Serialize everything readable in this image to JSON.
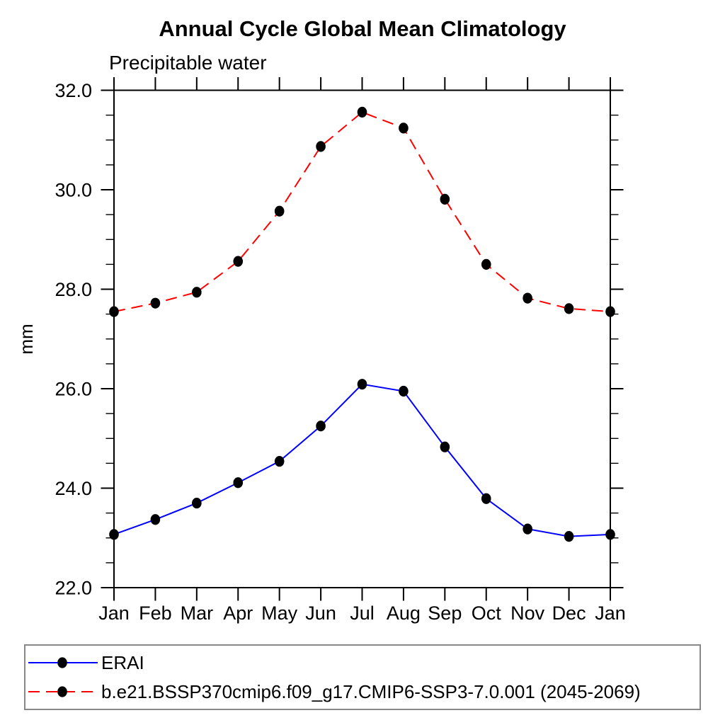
{
  "chart_data": {
    "type": "line",
    "title": "Annual Cycle Global Mean Climatology",
    "subtitle": "Precipitable water",
    "ylabel": "mm",
    "categories": [
      "Jan",
      "Feb",
      "Mar",
      "Apr",
      "May",
      "Jun",
      "Jul",
      "Aug",
      "Sep",
      "Oct",
      "Nov",
      "Dec",
      "Jan"
    ],
    "ylim": [
      22.0,
      32.0
    ],
    "ytick_interval_major": 2.0,
    "ytick_interval_minor": 0.5,
    "ytick_labels": [
      "22.0",
      "24.0",
      "26.0",
      "28.0",
      "30.0",
      "32.0"
    ],
    "grid": false,
    "frame": "box-with-outward-ticks",
    "legend_position": "bottom-left",
    "axis_color": "#000000",
    "legend_border_color": "#888888",
    "series": [
      {
        "name": "ERAI",
        "color": "#0000ff",
        "line_style": "solid",
        "marker": "filled-circle",
        "marker_color": "#000000",
        "values": [
          23.07,
          23.37,
          23.7,
          24.11,
          24.54,
          25.25,
          26.09,
          25.95,
          24.83,
          23.79,
          23.18,
          23.03,
          23.07
        ]
      },
      {
        "name": "b.e21.BSSP370cmip6.f09_g17.CMIP6-SSP3-7.0.001 (2045-2069)",
        "color": "#ff0000",
        "line_style": "dashed",
        "marker": "filled-circle",
        "marker_color": "#000000",
        "values": [
          27.55,
          27.72,
          27.94,
          28.56,
          29.57,
          30.87,
          31.56,
          31.24,
          29.81,
          28.5,
          27.82,
          27.61,
          27.55
        ]
      }
    ]
  }
}
